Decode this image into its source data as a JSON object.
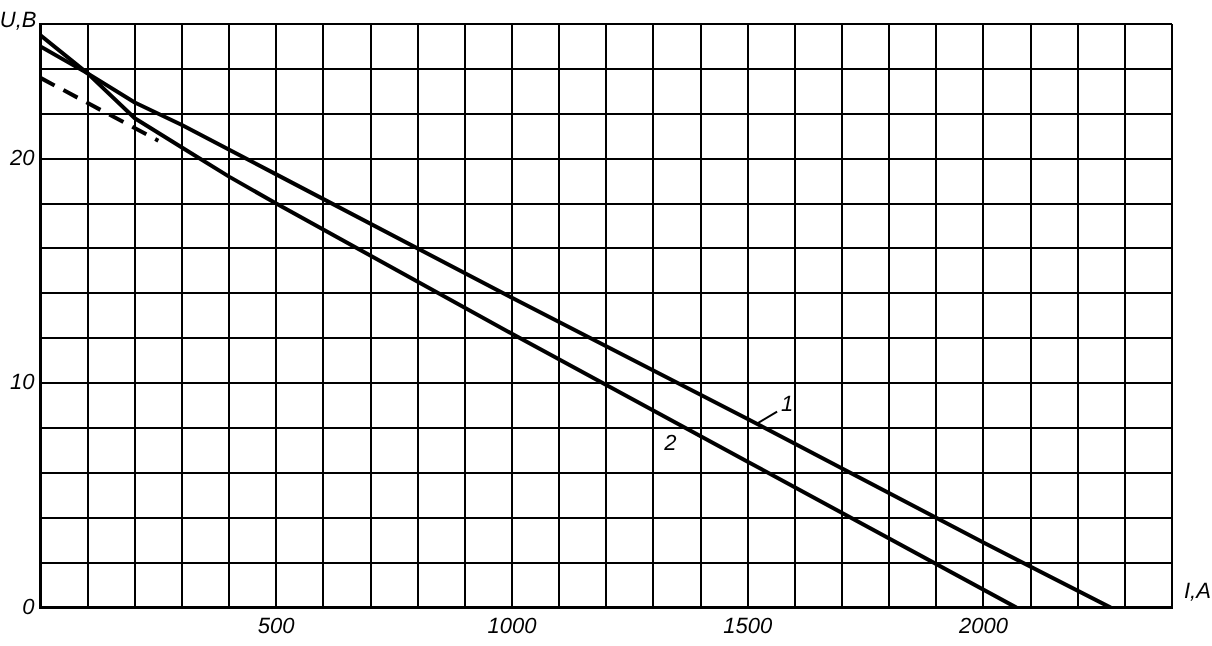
{
  "chart_data": {
    "type": "line",
    "xlabel": "I,A",
    "ylabel": "U,B",
    "xlim": [
      0,
      2400
    ],
    "ylim": [
      0,
      26
    ],
    "xticks": [
      {
        "value": 0,
        "label": null
      },
      {
        "value": 100,
        "label": null
      },
      {
        "value": 200,
        "label": null
      },
      {
        "value": 300,
        "label": null
      },
      {
        "value": 400,
        "label": null
      },
      500,
      {
        "value": 600,
        "label": null
      },
      {
        "value": 700,
        "label": null
      },
      {
        "value": 800,
        "label": null
      },
      {
        "value": 900,
        "label": null
      },
      1000,
      {
        "value": 1100,
        "label": null
      },
      {
        "value": 1200,
        "label": null
      },
      {
        "value": 1300,
        "label": null
      },
      {
        "value": 1400,
        "label": null
      },
      1500,
      {
        "value": 1600,
        "label": null
      },
      {
        "value": 1700,
        "label": null
      },
      {
        "value": 1800,
        "label": null
      },
      {
        "value": 1900,
        "label": null
      },
      2000,
      {
        "value": 2100,
        "label": null
      },
      {
        "value": 2200,
        "label": null
      },
      {
        "value": 2300,
        "label": null
      },
      {
        "value": 2400,
        "label": null
      }
    ],
    "yticks": [
      0,
      {
        "value": 2,
        "label": null
      },
      {
        "value": 4,
        "label": null
      },
      {
        "value": 6,
        "label": null
      },
      {
        "value": 8,
        "label": null
      },
      10,
      {
        "value": 12,
        "label": null
      },
      {
        "value": 14,
        "label": null
      },
      {
        "value": 16,
        "label": null
      },
      {
        "value": 18,
        "label": null
      },
      20,
      {
        "value": 22,
        "label": null
      },
      {
        "value": 24,
        "label": null
      },
      {
        "value": 26,
        "label": null
      }
    ],
    "grid": true,
    "legend": false,
    "marker": "none",
    "series": [
      {
        "color": "#000000",
        "x": [
          0,
          100,
          200,
          300,
          500,
          1000,
          1500,
          2000,
          2270
        ],
        "values": [
          25.0,
          23.8,
          22.5,
          21.5,
          19.3,
          13.8,
          8.4,
          2.9,
          0
        ]
      },
      {
        "color": "#000000",
        "x": [
          0,
          100,
          200,
          300,
          400,
          500,
          1000,
          1500,
          2070
        ],
        "values": [
          25.5,
          23.8,
          21.8,
          20.5,
          19.2,
          18.0,
          12.2,
          6.5,
          0
        ]
      },
      {
        "color": "#000000",
        "line_style": "dashed",
        "x": [
          0,
          250
        ],
        "values": [
          23.6,
          20.8
        ]
      }
    ],
    "annotations": [
      {
        "text": "1",
        "x": 1520,
        "y": 8.2
      },
      {
        "text": "2",
        "x": 1400,
        "y": 7.6
      }
    ]
  }
}
